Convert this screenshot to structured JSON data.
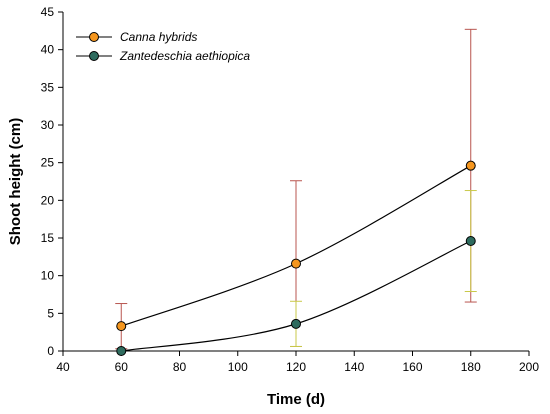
{
  "chart_data": {
    "type": "line",
    "xlabel": "Time (d)",
    "ylabel": "Shoot height (cm)",
    "xlim": [
      40,
      200
    ],
    "ylim": [
      0,
      45
    ],
    "xticks": [
      40,
      60,
      80,
      100,
      120,
      140,
      160,
      180,
      200
    ],
    "yticks": [
      0,
      5,
      10,
      15,
      20,
      25,
      30,
      35,
      40,
      45
    ],
    "grid": false,
    "legend_position": "top-left",
    "series": [
      {
        "name": "Canna hybrids",
        "color": "#F5961E",
        "error_color": "#B8554F",
        "x": [
          60,
          120,
          180
        ],
        "y": [
          3.3,
          11.6,
          24.6
        ],
        "err_upper": [
          6.3,
          22.6,
          42.7
        ],
        "err_lower": [
          0.3,
          0.6,
          6.5
        ]
      },
      {
        "name": "Zantedeschia aethiopica",
        "color": "#2E6B5E",
        "error_color": "#C9C94A",
        "x": [
          60,
          120,
          180
        ],
        "y": [
          0,
          3.6,
          14.6
        ],
        "err_upper": [
          0,
          6.6,
          21.3
        ],
        "err_lower": [
          0,
          0.6,
          7.9
        ]
      }
    ]
  }
}
